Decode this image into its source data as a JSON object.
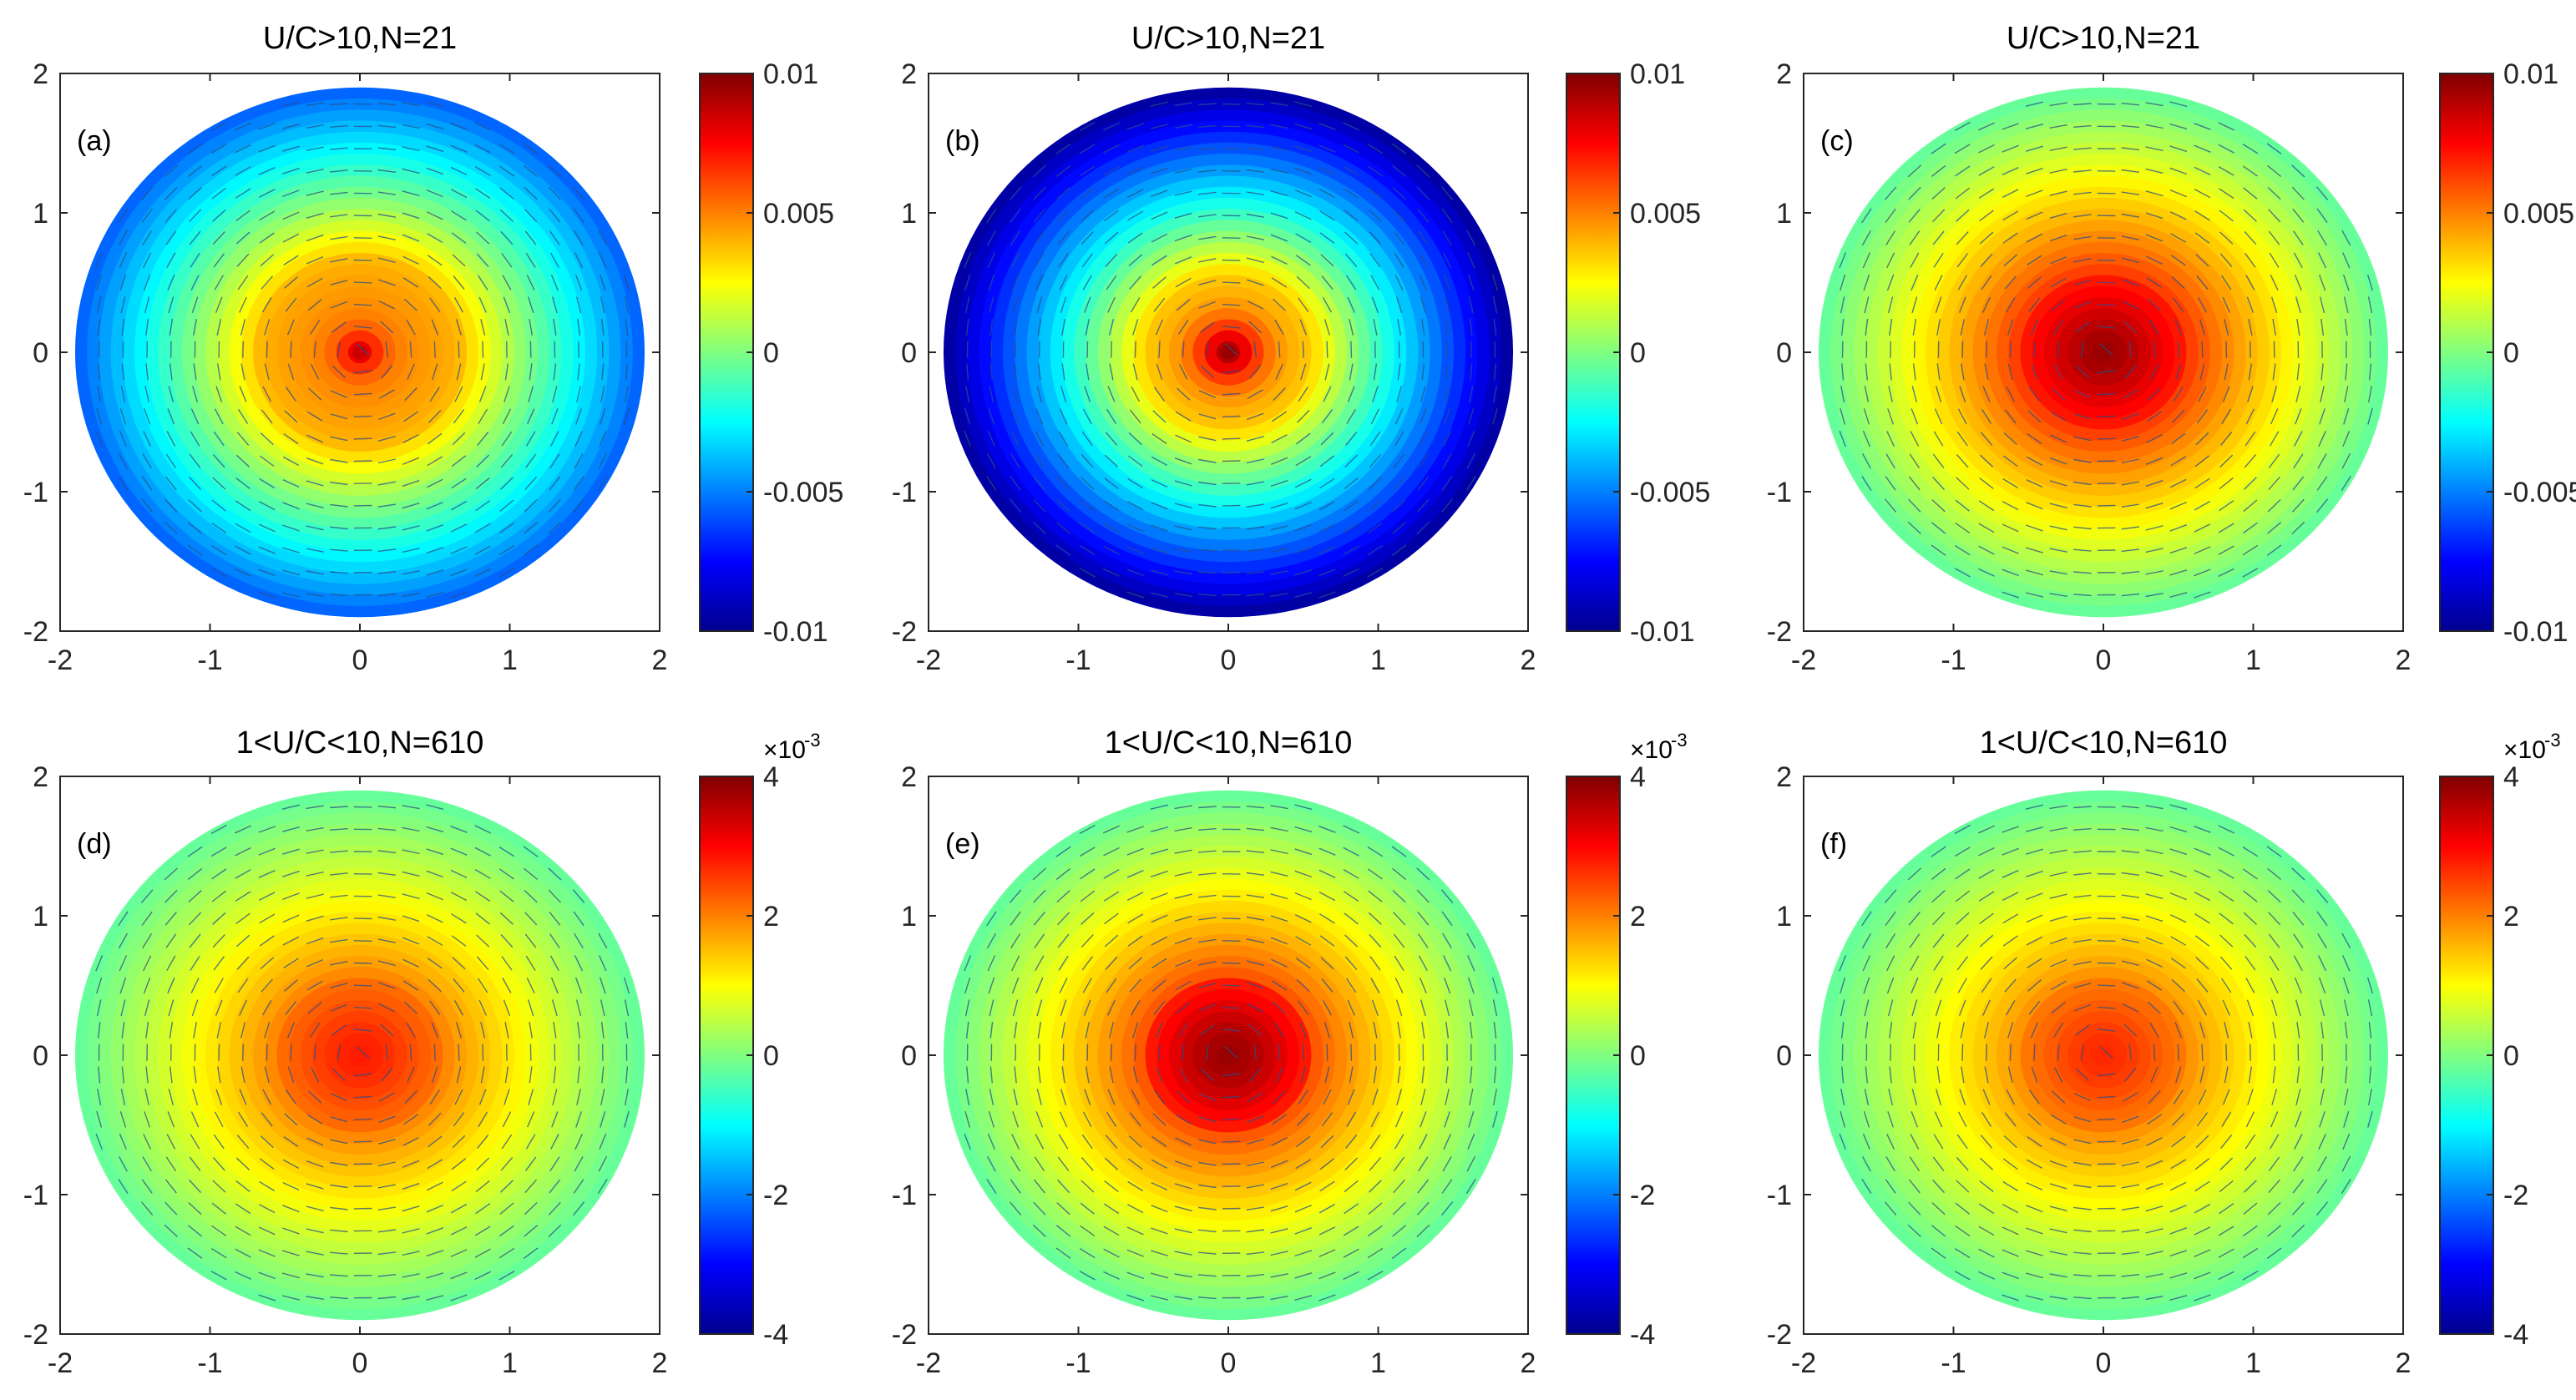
{
  "figure": {
    "description_type": "grid",
    "rows": 2,
    "cols": 3
  },
  "chart_data": [
    {
      "type": "heatmap",
      "panel": "(a)",
      "title": "U/C>10,N=21",
      "xlim": [
        -2,
        2
      ],
      "ylim": [
        -2,
        2
      ],
      "xticks": [
        "-2",
        "-1",
        "0",
        "1",
        "2"
      ],
      "yticks": [
        "-2",
        "-1",
        "0",
        "1",
        "2"
      ],
      "colorbar": {
        "range": [
          -0.01,
          0.01
        ],
        "ticks": [
          "-0.01",
          "-0.005",
          "0",
          "0.005",
          "0.01"
        ],
        "exponent": ""
      },
      "field": {
        "center": 0.0085,
        "ring": 0.004,
        "ring_radius": 0.7,
        "edge": -0.0055,
        "edge_radius": 1.9,
        "peak_width": 0.12
      },
      "quiver": "rotational vector field overlaid"
    },
    {
      "type": "heatmap",
      "panel": "(b)",
      "title": "U/C>10,N=21",
      "xlim": [
        -2,
        2
      ],
      "ylim": [
        -2,
        2
      ],
      "xticks": [
        "-2",
        "-1",
        "0",
        "1",
        "2"
      ],
      "yticks": [
        "-2",
        "-1",
        "0",
        "1",
        "2"
      ],
      "colorbar": {
        "range": [
          -0.01,
          0.01
        ],
        "ticks": [
          "-0.01",
          "-0.005",
          "0",
          "0.005",
          "0.01"
        ],
        "exponent": ""
      },
      "field": {
        "center": 0.0095,
        "ring": 0.0035,
        "ring_radius": 0.6,
        "edge": -0.0095,
        "edge_radius": 1.9,
        "peak_width": 0.16
      },
      "quiver": "rotational vector field overlaid"
    },
    {
      "type": "heatmap",
      "panel": "(c)",
      "title": "U/C>10,N=21",
      "xlim": [
        -2,
        2
      ],
      "ylim": [
        -2,
        2
      ],
      "xticks": [
        "-2",
        "-1",
        "0",
        "1",
        "2"
      ],
      "yticks": [
        "-2",
        "-1",
        "0",
        "1",
        "2"
      ],
      "colorbar": {
        "range": [
          -0.01,
          0.01
        ],
        "ticks": [
          "-0.01",
          "-0.005",
          "0",
          "0.005",
          "0.01"
        ],
        "exponent": ""
      },
      "field": {
        "center": 0.0095,
        "ring": 0.0065,
        "ring_radius": 0.6,
        "edge": -0.0005,
        "edge_radius": 1.9,
        "peak_width": 0.3
      },
      "quiver": "rotational vector field overlaid"
    },
    {
      "type": "heatmap",
      "panel": "(d)",
      "title": "1<U/C<10,N=610",
      "xlim": [
        -2,
        2
      ],
      "ylim": [
        -2,
        2
      ],
      "xticks": [
        "-2",
        "-1",
        "0",
        "1",
        "2"
      ],
      "yticks": [
        "-2",
        "-1",
        "0",
        "1",
        "2"
      ],
      "colorbar": {
        "range": [
          -4,
          4
        ],
        "ticks": [
          "-4",
          "-2",
          "0",
          "2",
          "4"
        ],
        "exponent": "-3"
      },
      "field": {
        "center": 2.8,
        "ring": 2.0,
        "ring_radius": 0.6,
        "edge": -0.2,
        "edge_radius": 1.9,
        "peak_width": 0.3
      },
      "quiver": "rotational vector field overlaid"
    },
    {
      "type": "heatmap",
      "panel": "(e)",
      "title": "1<U/C<10,N=610",
      "xlim": [
        -2,
        2
      ],
      "ylim": [
        -2,
        2
      ],
      "xticks": [
        "-2",
        "-1",
        "0",
        "1",
        "2"
      ],
      "yticks": [
        "-2",
        "-1",
        "0",
        "1",
        "2"
      ],
      "colorbar": {
        "range": [
          -4,
          4
        ],
        "ticks": [
          "-4",
          "-2",
          "0",
          "2",
          "4"
        ],
        "exponent": "-3"
      },
      "field": {
        "center": 3.8,
        "ring": 2.4,
        "ring_radius": 0.6,
        "edge": -0.2,
        "edge_radius": 1.9,
        "peak_width": 0.35
      },
      "quiver": "rotational vector field overlaid"
    },
    {
      "type": "heatmap",
      "panel": "(f)",
      "title": "1<U/C<10,N=610",
      "xlim": [
        -2,
        2
      ],
      "ylim": [
        -2,
        2
      ],
      "xticks": [
        "-2",
        "-1",
        "0",
        "1",
        "2"
      ],
      "yticks": [
        "-2",
        "-1",
        "0",
        "1",
        "2"
      ],
      "colorbar": {
        "range": [
          -4,
          4
        ],
        "ticks": [
          "-4",
          "-2",
          "0",
          "2",
          "4"
        ],
        "exponent": "-3"
      },
      "field": {
        "center": 2.7,
        "ring": 1.9,
        "ring_radius": 0.6,
        "edge": -0.2,
        "edge_radius": 1.9,
        "peak_width": 0.3
      },
      "quiver": "rotational vector field overlaid"
    }
  ],
  "colors": {
    "quiver": "#2a4f8a",
    "axis": "#262626"
  }
}
